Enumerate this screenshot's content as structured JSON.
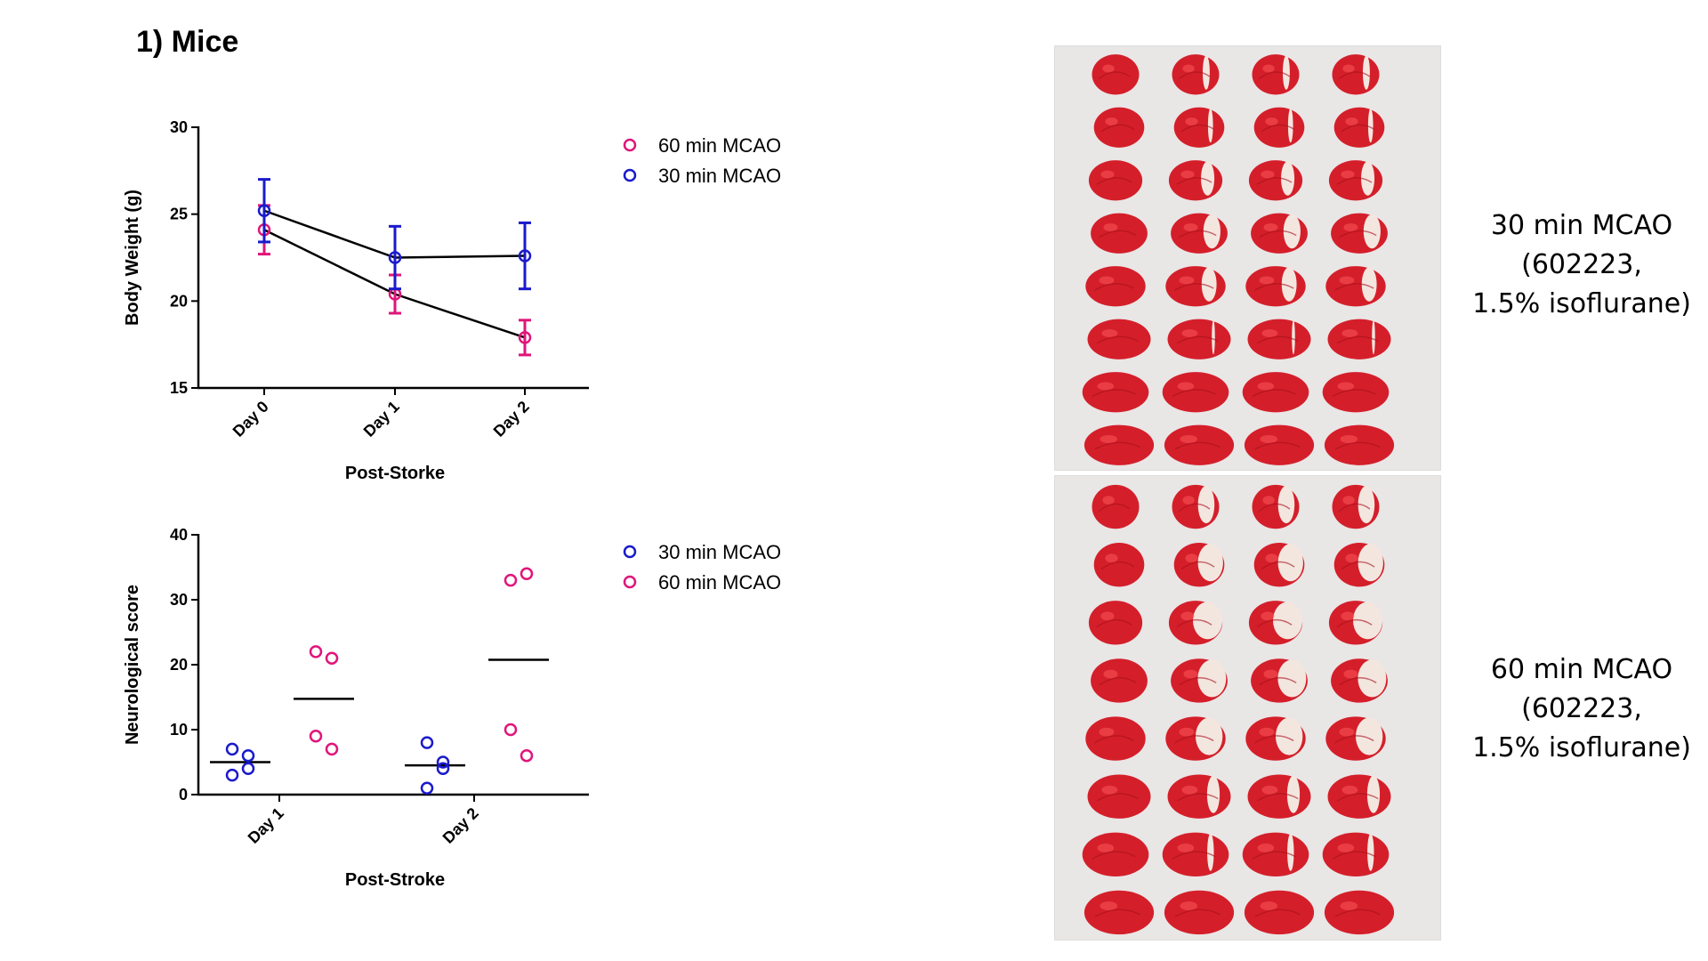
{
  "title": "1) Mice",
  "chart_data": [
    {
      "type": "line",
      "ylabel": "Body Weight (g)",
      "xlabel": "Post-Storke",
      "categories": [
        "Day 0",
        "Day 1",
        "Day 2"
      ],
      "ylim": [
        15,
        30
      ],
      "yticks": [
        15,
        20,
        25,
        30
      ],
      "legend": "top-right",
      "series": [
        {
          "name": "60 min MCAO",
          "color": "#e0157a",
          "values": [
            24.1,
            20.4,
            17.9
          ],
          "err": [
            1.4,
            1.1,
            1.0
          ]
        },
        {
          "name": "30 min MCAO",
          "color": "#1a1acc",
          "values": [
            25.2,
            22.5,
            22.6
          ],
          "err": [
            1.8,
            1.8,
            1.9
          ]
        }
      ]
    },
    {
      "type": "scatter",
      "ylabel": "Neurological score",
      "xlabel": "Post-Stroke",
      "categories": [
        "Day 1",
        "Day 2"
      ],
      "ylim": [
        0,
        40
      ],
      "yticks": [
        0,
        10,
        20,
        30,
        40
      ],
      "legend": "top-right",
      "series": [
        {
          "name": "30 min MCAO",
          "color": "#1a1acc",
          "points": [
            [
              7,
              6,
              3,
              4
            ],
            [
              8,
              5,
              1,
              4
            ]
          ],
          "means": [
            5,
            4.5
          ]
        },
        {
          "name": "60 min MCAO",
          "color": "#e0157a",
          "points": [
            [
              22,
              21,
              9,
              7
            ],
            [
              33,
              34,
              10,
              6
            ]
          ],
          "means": [
            14.75,
            20.75
          ]
        }
      ]
    }
  ],
  "photos": [
    {
      "caption": [
        "30 min MCAO",
        "(602223,",
        "1.5% isoflurane)"
      ]
    },
    {
      "caption": [
        "60 min MCAO",
        "(602223,",
        "1.5% isoflurane)"
      ]
    }
  ],
  "colors": {
    "tissue_red": "#d41f2a",
    "tissue_white": "#f3e6df",
    "background": "#e9e6e6"
  }
}
